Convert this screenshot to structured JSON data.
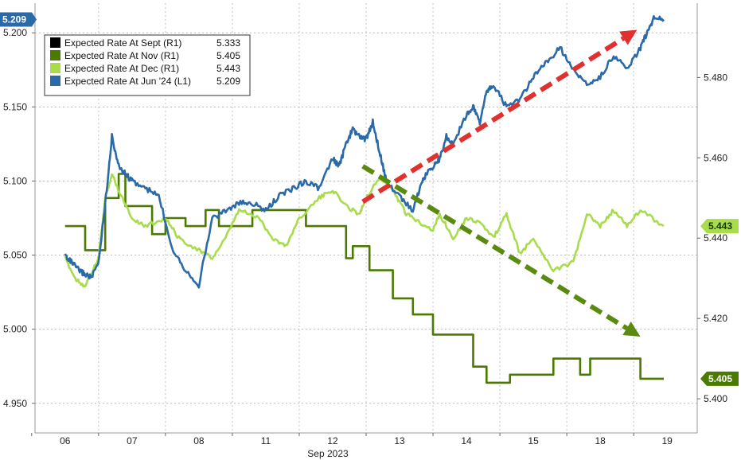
{
  "chart_data": {
    "type": "line",
    "x_tick_labels": [
      "06",
      "07",
      "08",
      "11",
      "12",
      "13",
      "14",
      "15",
      "18",
      "19"
    ],
    "x_axis_month": "Sep 2023",
    "left_axis": {
      "ylim": [
        4.93,
        5.22
      ],
      "ticks": [
        "5.200",
        "5.150",
        "5.100",
        "5.050",
        "5.000",
        "4.950"
      ],
      "tick_values": [
        5.2,
        5.15,
        5.1,
        5.05,
        5.0,
        4.95
      ]
    },
    "right_axis": {
      "ylim": [
        5.3915,
        5.4985
      ],
      "ticks": [
        "5.480",
        "5.460",
        "5.440",
        "5.420",
        "5.400"
      ],
      "tick_values": [
        5.48,
        5.46,
        5.44,
        5.42,
        5.4
      ]
    },
    "legend": [
      {
        "name": "Expected Rate At Sept (R1)",
        "value": "5.333",
        "color": "#000000"
      },
      {
        "name": "Expected Rate At Nov (R1)",
        "value": "5.405",
        "color": "#4a7a00"
      },
      {
        "name": "Expected Rate At Dec (R1)",
        "value": "5.443",
        "color": "#a8dc4c"
      },
      {
        "name": "Expected Rate At Jun '24 (L1)",
        "value": "5.209",
        "color": "#2b6aa8"
      }
    ],
    "last_value_tags": [
      {
        "label": "5.209",
        "axis": "left",
        "value": 5.209,
        "color": "#2b6aa8",
        "text_color": "#ffffff"
      },
      {
        "label": "5.443",
        "axis": "right",
        "value": 5.443,
        "color": "#a8dc4c",
        "text_color": "#1a3300"
      },
      {
        "label": "5.405",
        "axis": "right",
        "value": 5.405,
        "color": "#4a7a00",
        "text_color": "#ffffff"
      }
    ],
    "series": [
      {
        "name": "Expected Rate At Nov (R1)",
        "axis": "right",
        "color": "#4a7a00",
        "x": [
          0,
          0.3,
          0.3,
          0.6,
          0.6,
          0.8,
          0.8,
          0.9,
          0.9,
          1.3,
          1.3,
          1.5,
          1.5,
          1.8,
          1.8,
          2.1,
          2.1,
          2.3,
          2.3,
          2.8,
          2.8,
          3.6,
          3.6,
          4.2,
          4.2,
          4.3,
          4.3,
          4.55,
          4.55,
          4.9,
          4.9,
          5.2,
          5.2,
          5.5,
          5.5,
          6.1,
          6.1,
          6.3,
          6.3,
          6.65,
          6.65,
          7.3,
          7.3,
          7.7,
          7.7,
          7.85,
          7.85,
          8.6,
          8.6,
          8.95
        ],
        "y": [
          5.443,
          5.443,
          5.437,
          5.437,
          5.45,
          5.45,
          5.456,
          5.456,
          5.448,
          5.448,
          5.441,
          5.441,
          5.445,
          5.445,
          5.443,
          5.443,
          5.447,
          5.447,
          5.443,
          5.443,
          5.447,
          5.447,
          5.443,
          5.443,
          5.435,
          5.435,
          5.438,
          5.438,
          5.432,
          5.432,
          5.425,
          5.425,
          5.421,
          5.421,
          5.416,
          5.416,
          5.408,
          5.408,
          5.404,
          5.404,
          5.406,
          5.406,
          5.41,
          5.41,
          5.406,
          5.406,
          5.41,
          5.41,
          5.405,
          5.405
        ]
      },
      {
        "name": "Expected Rate At Dec (R1)",
        "axis": "right",
        "color": "#a8dc4c",
        "x": [
          0,
          0.15,
          0.3,
          0.5,
          0.6,
          0.7,
          0.8,
          1.0,
          1.2,
          1.5,
          1.7,
          2.0,
          2.2,
          2.4,
          2.6,
          2.9,
          3.1,
          3.3,
          3.5,
          3.8,
          4.0,
          4.2,
          4.4,
          4.5,
          4.7,
          4.9,
          5.1,
          5.3,
          5.5,
          5.6,
          5.8,
          6.0,
          6.2,
          6.4,
          6.6,
          6.8,
          7.0,
          7.3,
          7.6,
          7.8,
          8.0,
          8.2,
          8.4,
          8.6,
          8.95
        ],
        "y": [
          5.435,
          5.43,
          5.428,
          5.435,
          5.45,
          5.456,
          5.452,
          5.445,
          5.443,
          5.445,
          5.44,
          5.437,
          5.435,
          5.44,
          5.447,
          5.445,
          5.44,
          5.438,
          5.445,
          5.45,
          5.452,
          5.448,
          5.446,
          5.45,
          5.455,
          5.452,
          5.446,
          5.444,
          5.442,
          5.446,
          5.44,
          5.445,
          5.444,
          5.44,
          5.446,
          5.436,
          5.44,
          5.432,
          5.434,
          5.446,
          5.443,
          5.447,
          5.443,
          5.447,
          5.443
        ]
      },
      {
        "name": "Expected Rate At Jun '24 (L1)",
        "axis": "left",
        "color": "#2b6aa8",
        "x": [
          0,
          0.1,
          0.2,
          0.3,
          0.4,
          0.5,
          0.6,
          0.7,
          0.8,
          0.9,
          1.0,
          1.2,
          1.4,
          1.6,
          1.8,
          2.0,
          2.2,
          2.4,
          2.6,
          2.8,
          3.0,
          3.2,
          3.4,
          3.6,
          3.8,
          4.0,
          4.1,
          4.2,
          4.3,
          4.4,
          4.5,
          4.6,
          4.7,
          4.8,
          5.0,
          5.2,
          5.3,
          5.4,
          5.5,
          5.6,
          5.7,
          5.8,
          6.0,
          6.1,
          6.2,
          6.3,
          6.4,
          6.6,
          6.8,
          7.0,
          7.2,
          7.4,
          7.6,
          7.8,
          8.0,
          8.2,
          8.4,
          8.6,
          8.7,
          8.8,
          8.95
        ],
        "y": [
          5.05,
          5.045,
          5.04,
          5.037,
          5.035,
          5.045,
          5.085,
          5.13,
          5.11,
          5.105,
          5.1,
          5.095,
          5.09,
          5.055,
          5.04,
          5.03,
          5.075,
          5.08,
          5.085,
          5.085,
          5.08,
          5.09,
          5.095,
          5.1,
          5.095,
          5.115,
          5.11,
          5.125,
          5.135,
          5.13,
          5.128,
          5.14,
          5.12,
          5.1,
          5.09,
          5.08,
          5.095,
          5.105,
          5.11,
          5.115,
          5.13,
          5.125,
          5.145,
          5.15,
          5.14,
          5.16,
          5.165,
          5.15,
          5.155,
          5.17,
          5.18,
          5.19,
          5.175,
          5.165,
          5.17,
          5.185,
          5.175,
          5.19,
          5.2,
          5.21,
          5.209
        ]
      }
    ],
    "arrows": [
      {
        "color": "#e03030",
        "from": {
          "x": 4.45,
          "y_left": 5.086
        },
        "to": {
          "x": 8.55,
          "y_left": 5.202
        }
      },
      {
        "color": "#5a8a10",
        "from": {
          "x": 4.45,
          "y_left": 5.11
        },
        "to": {
          "x": 8.6,
          "y_left": 4.995
        }
      }
    ]
  }
}
